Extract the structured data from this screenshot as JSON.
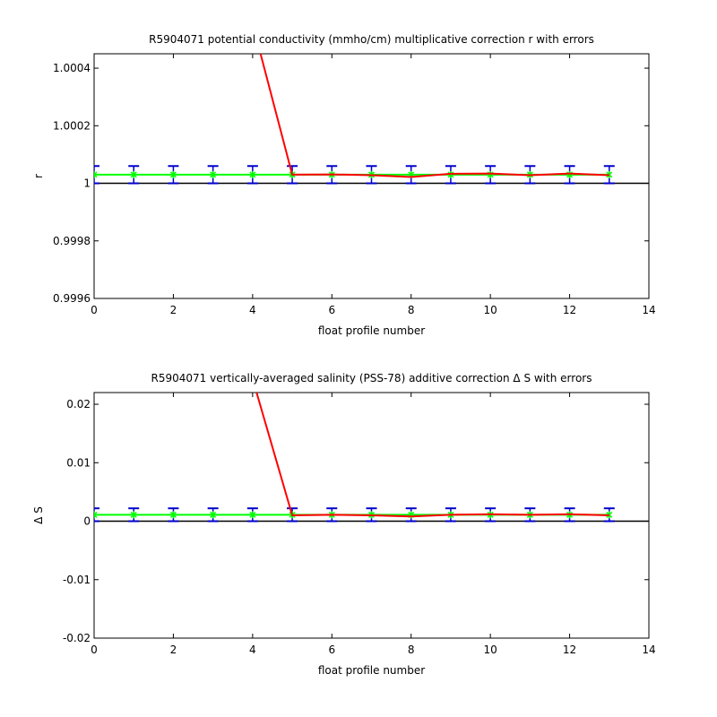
{
  "chart_data": [
    {
      "type": "line",
      "title": "R5904071 potential conductivity (mmho/cm) multiplicative correction r with errors",
      "xlabel": "float profile number",
      "ylabel": "r",
      "xlim": [
        0,
        14
      ],
      "ylim": [
        0.9996,
        1.00045
      ],
      "x_ticks": [
        "0",
        "2",
        "4",
        "6",
        "8",
        "10",
        "12",
        "14"
      ],
      "y_ticks": [
        {
          "v": 0.9996,
          "label": "0.9996"
        },
        {
          "v": 0.9998,
          "label": "0.9998"
        },
        {
          "v": 1.0,
          "label": "1"
        },
        {
          "v": 1.0002,
          "label": "1.0002"
        },
        {
          "v": 1.0004,
          "label": "1.0004"
        }
      ],
      "reference_line": 1.0,
      "grid": false,
      "series": [
        {
          "color": "#ff0000",
          "x": [
            4.2,
            5,
            6,
            7,
            8,
            9,
            10,
            11,
            12,
            13
          ],
          "y": [
            1.00045,
            1.00003,
            1.000031,
            1.000028,
            1.000022,
            1.000033,
            1.000034,
            1.000028,
            1.000034,
            1.000028
          ]
        },
        {
          "color": "#00ff00",
          "x": [
            0,
            1,
            2,
            3,
            4,
            5,
            6,
            7,
            8,
            9,
            10,
            11,
            12,
            13
          ],
          "y": [
            1.00003,
            1.00003,
            1.00003,
            1.00003,
            1.00003,
            1.00003,
            1.00003,
            1.00003,
            1.00003,
            1.00003,
            1.00003,
            1.00003,
            1.00003,
            1.00003
          ],
          "error": [
            3e-05,
            3e-05,
            3e-05,
            3e-05,
            3e-05,
            3e-05,
            3e-05,
            3e-05,
            3e-05,
            3e-05,
            3e-05,
            3e-05,
            3e-05,
            3e-05
          ],
          "error_color": "#0000cc"
        }
      ]
    },
    {
      "type": "line",
      "title": "R5904071 vertically-averaged salinity (PSS-78) additive correction Δ S with errors",
      "xlabel": "float profile number",
      "ylabel": "Δ S",
      "xlim": [
        0,
        14
      ],
      "ylim": [
        -0.02,
        0.022
      ],
      "x_ticks": [
        "0",
        "2",
        "4",
        "6",
        "8",
        "10",
        "12",
        "14"
      ],
      "y_ticks": [
        {
          "v": -0.02,
          "label": "-0.02"
        },
        {
          "v": -0.01,
          "label": "-0.01"
        },
        {
          "v": 0.0,
          "label": "0"
        },
        {
          "v": 0.01,
          "label": "0.01"
        },
        {
          "v": 0.02,
          "label": "0.02"
        }
      ],
      "reference_line": 0.0,
      "grid": false,
      "series": [
        {
          "color": "#ff0000",
          "x": [
            4.1,
            5,
            6,
            7,
            8,
            9,
            10,
            11,
            12,
            13
          ],
          "y": [
            0.022,
            0.001,
            0.0011,
            0.001,
            0.0008,
            0.0011,
            0.0012,
            0.0011,
            0.0012,
            0.001
          ]
        },
        {
          "color": "#00ff00",
          "x": [
            0,
            1,
            2,
            3,
            4,
            5,
            6,
            7,
            8,
            9,
            10,
            11,
            12,
            13
          ],
          "y": [
            0.0011,
            0.0011,
            0.0011,
            0.0011,
            0.0011,
            0.0011,
            0.0011,
            0.0011,
            0.0011,
            0.0011,
            0.0011,
            0.0011,
            0.0011,
            0.0011
          ],
          "error": [
            0.0011,
            0.0011,
            0.0011,
            0.0011,
            0.0011,
            0.0011,
            0.0011,
            0.0011,
            0.0011,
            0.0011,
            0.0011,
            0.0011,
            0.0011,
            0.0011
          ],
          "error_color": "#0000cc"
        }
      ]
    }
  ]
}
